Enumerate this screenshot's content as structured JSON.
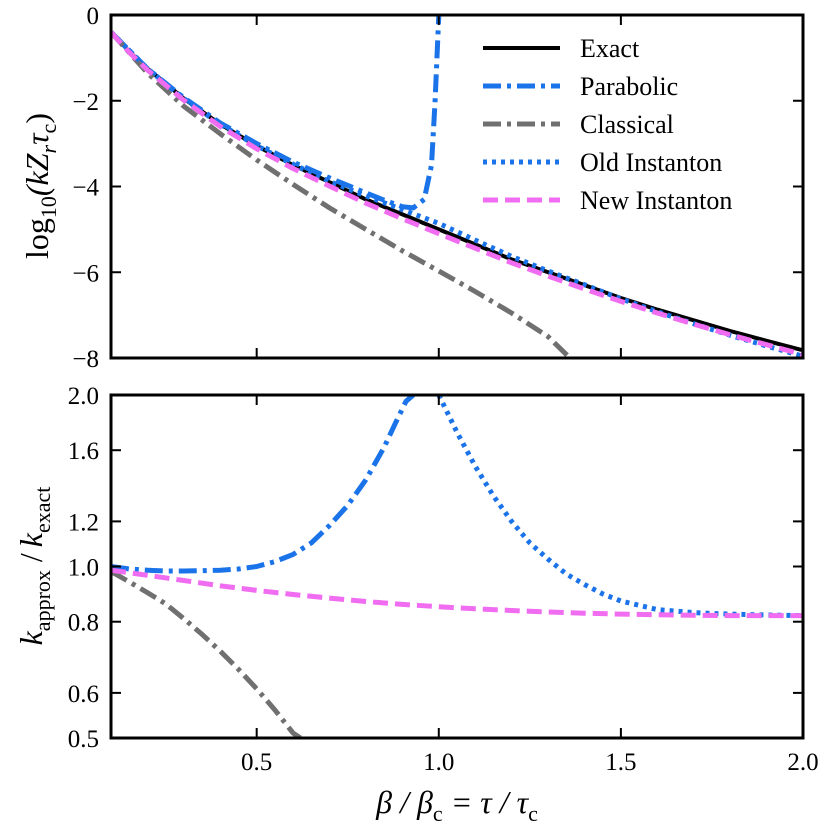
{
  "chart_data": [
    {
      "type": "line",
      "panel": "top",
      "xlim": [
        0.1,
        2.0
      ],
      "ylim": [
        -8,
        0
      ],
      "yticks": [
        0,
        -2,
        -4,
        -6,
        -8
      ],
      "ytick_labels": [
        "0",
        "−2",
        "−4",
        "−6",
        "−8"
      ],
      "xticks": [
        0.5,
        1.0,
        1.5,
        2.0
      ],
      "ylabel": {
        "prefix": "log",
        "sub": "10",
        "body": "(kZ",
        "sub2": "r",
        "mid": "τ",
        "sub3": "c",
        "suffix": ")"
      },
      "legend": [
        "Exact",
        "Parabolic",
        "Classical",
        "Old Instanton",
        "New Instanton"
      ],
      "legend_position": "top-right",
      "series": [
        {
          "name": "Exact",
          "color": "#000000",
          "style": "solid",
          "x": [
            0.1,
            0.15,
            0.2,
            0.3,
            0.4,
            0.5,
            0.6,
            0.7,
            0.8,
            0.9,
            1.0,
            1.1,
            1.2,
            1.3,
            1.4,
            1.5,
            1.6,
            1.7,
            1.8,
            1.9,
            2.0
          ],
          "y": [
            -0.4,
            -0.85,
            -1.25,
            -1.95,
            -2.55,
            -3.05,
            -3.5,
            -3.9,
            -4.3,
            -4.65,
            -5.0,
            -5.35,
            -5.7,
            -6.0,
            -6.3,
            -6.6,
            -6.87,
            -7.12,
            -7.37,
            -7.6,
            -7.82
          ]
        },
        {
          "name": "Parabolic",
          "color": "#1a73e8",
          "style": "dashdot",
          "x": [
            0.1,
            0.2,
            0.3,
            0.4,
            0.5,
            0.6,
            0.7,
            0.8,
            0.85,
            0.9,
            0.93,
            0.96,
            0.98,
            0.99,
            1.0
          ],
          "y": [
            -0.4,
            -1.25,
            -1.93,
            -2.52,
            -3.0,
            -3.43,
            -3.8,
            -4.15,
            -4.32,
            -4.47,
            -4.5,
            -4.3,
            -3.5,
            -2.0,
            0.0
          ]
        },
        {
          "name": "Classical",
          "color": "#707070",
          "style": "dashdot",
          "x": [
            0.1,
            0.2,
            0.3,
            0.4,
            0.5,
            0.6,
            0.7,
            0.8,
            0.9,
            1.0,
            1.1,
            1.2,
            1.3,
            1.36
          ],
          "y": [
            -0.4,
            -1.35,
            -2.13,
            -2.77,
            -3.38,
            -3.95,
            -4.5,
            -5.0,
            -5.5,
            -5.97,
            -6.45,
            -6.95,
            -7.5,
            -8.0
          ]
        },
        {
          "name": "Old Instanton",
          "color": "#1a73e8",
          "style": "dotted",
          "x": [
            0.1,
            0.2,
            0.3,
            0.4,
            0.5,
            0.6,
            0.7,
            0.8,
            0.9,
            1.0,
            1.1,
            1.2,
            1.3,
            1.4,
            1.5,
            1.6,
            1.7,
            1.8,
            1.9,
            2.0
          ],
          "y": [
            -0.4,
            -1.25,
            -1.95,
            -2.55,
            -3.05,
            -3.48,
            -3.88,
            -4.22,
            -4.54,
            -4.86,
            -5.25,
            -5.63,
            -5.97,
            -6.29,
            -6.62,
            -6.92,
            -7.2,
            -7.47,
            -7.72,
            -7.96
          ]
        },
        {
          "name": "New Instanton",
          "color": "#f06cf0",
          "style": "dashed",
          "x": [
            0.1,
            0.15,
            0.2,
            0.3,
            0.4,
            0.5,
            0.6,
            0.7,
            0.8,
            0.9,
            1.0,
            1.1,
            1.2,
            1.3,
            1.4,
            1.5,
            1.6,
            1.7,
            1.8,
            1.9,
            2.0
          ],
          "y": [
            -0.4,
            -0.87,
            -1.28,
            -1.99,
            -2.6,
            -3.12,
            -3.58,
            -3.99,
            -4.39,
            -4.75,
            -5.1,
            -5.44,
            -5.78,
            -6.09,
            -6.39,
            -6.68,
            -6.95,
            -7.21,
            -7.46,
            -7.69,
            -7.92
          ]
        }
      ]
    },
    {
      "type": "line",
      "panel": "bottom",
      "yscale": "log",
      "xlim": [
        0.1,
        2.0
      ],
      "ylim": [
        0.5,
        2.0
      ],
      "yticks": [
        2.0,
        1.6,
        1.2,
        1.0,
        0.8,
        0.6,
        0.5
      ],
      "ytick_labels": [
        "2.0",
        "1.6",
        "1.2",
        "1.0",
        "0.8",
        "0.6",
        "0.5"
      ],
      "xticks": [
        0.5,
        1.0,
        1.5,
        2.0
      ],
      "xtick_labels": [
        "0.5",
        "1.0",
        "1.5",
        "2.0"
      ],
      "ylabel": {
        "k1": "k",
        "sub1": "approx",
        "slash": " /",
        "k2": "k",
        "sub2": "exact"
      },
      "xlabel": {
        "b1": "β / β",
        "s1": "c",
        "eq": " = τ / τ",
        "s2": "c"
      },
      "series": [
        {
          "name": "Parabolic",
          "color": "#1a73e8",
          "style": "dashdot",
          "x": [
            0.1,
            0.15,
            0.2,
            0.25,
            0.3,
            0.35,
            0.4,
            0.45,
            0.5,
            0.55,
            0.6,
            0.65,
            0.7,
            0.75,
            0.8,
            0.85,
            0.88,
            0.91,
            0.93
          ],
          "y": [
            1.0,
            0.99,
            0.985,
            0.982,
            0.982,
            0.983,
            0.985,
            0.99,
            1.0,
            1.02,
            1.05,
            1.1,
            1.18,
            1.28,
            1.42,
            1.62,
            1.78,
            1.95,
            2.0
          ]
        },
        {
          "name": "Classical",
          "color": "#707070",
          "style": "dashdot",
          "x": [
            0.1,
            0.15,
            0.2,
            0.25,
            0.3,
            0.35,
            0.4,
            0.45,
            0.5,
            0.55,
            0.6,
            0.62
          ],
          "y": [
            0.98,
            0.94,
            0.9,
            0.86,
            0.81,
            0.76,
            0.71,
            0.66,
            0.61,
            0.56,
            0.51,
            0.5
          ]
        },
        {
          "name": "Old Instanton",
          "color": "#1a73e8",
          "style": "dotted",
          "x": [
            1.0,
            1.05,
            1.1,
            1.15,
            1.2,
            1.25,
            1.3,
            1.35,
            1.4,
            1.45,
            1.5,
            1.55,
            1.6,
            1.65,
            1.7,
            1.75,
            1.8,
            1.9,
            2.0
          ],
          "y": [
            2.0,
            1.72,
            1.5,
            1.33,
            1.2,
            1.1,
            1.03,
            0.97,
            0.93,
            0.895,
            0.87,
            0.855,
            0.84,
            0.835,
            0.83,
            0.827,
            0.825,
            0.822,
            0.82
          ]
        },
        {
          "name": "New Instanton",
          "color": "#f06cf0",
          "style": "dashed",
          "x": [
            0.1,
            0.2,
            0.3,
            0.4,
            0.5,
            0.6,
            0.7,
            0.8,
            0.9,
            1.0,
            1.1,
            1.2,
            1.3,
            1.4,
            1.5,
            1.6,
            1.7,
            1.8,
            1.9,
            2.0
          ],
          "y": [
            0.985,
            0.965,
            0.945,
            0.925,
            0.908,
            0.893,
            0.88,
            0.868,
            0.858,
            0.85,
            0.843,
            0.837,
            0.832,
            0.828,
            0.825,
            0.823,
            0.821,
            0.82,
            0.82,
            0.82
          ]
        }
      ]
    }
  ]
}
